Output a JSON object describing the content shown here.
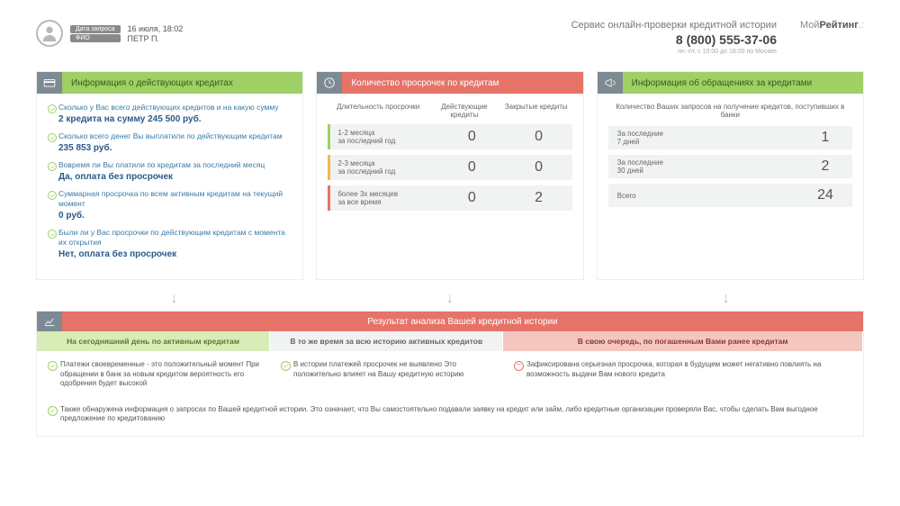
{
  "header": {
    "date_label": "Дата запроса",
    "name_label": "ФИО",
    "date_value": "16 июля, 18:02",
    "name_value": "ПЕТР П.",
    "service": "Сервис онлайн-проверки кредитной истории",
    "phone": "8 (800) 555-37-06",
    "hours": "пн.-пт. с 10:00 до 18:00 по Москве",
    "logo_1": "Мой",
    "logo_2": "Рейтинг"
  },
  "panel1": {
    "title": "Информация о действующих кредитах",
    "items": [
      {
        "q": "Сколько у Вас всего действующих кредитов и на какую сумму",
        "a": "2 кредита на сумму 245 500 руб."
      },
      {
        "q": "Сколько всего денег Вы выплатили по действующим кредитам",
        "a": "235 853 руб."
      },
      {
        "q": "Вовремя ли Вы платили по кредитам за последний месяц",
        "a": "Да, оплата без просрочек"
      },
      {
        "q": "Суммарная просрочка по всем активным кредитам на текущий момент",
        "a": "0 руб."
      },
      {
        "q": "Были ли у Вас просрочки по действующим кредитам с момента их открытия",
        "a": "Нет, оплата без просрочек"
      }
    ]
  },
  "panel2": {
    "title": "Количество просрочек по кредитам",
    "col1": "Длительность просрочки",
    "col2": "Действующие кредиты",
    "col3": "Закрытые кредиты",
    "rows": [
      {
        "label_1": "1-2 месяца",
        "label_2": "за последний год",
        "active": "0",
        "closed": "0",
        "color": "g"
      },
      {
        "label_1": "2-3 месяца",
        "label_2": "за последний год",
        "active": "0",
        "closed": "0",
        "color": "y"
      },
      {
        "label_1": "более 3х месяцев",
        "label_2": "за все время",
        "active": "0",
        "closed": "2",
        "color": "r"
      }
    ]
  },
  "panel3": {
    "title": "Информация об обращениях за кредитами",
    "caption": "Количество Ваших запросов на получение кредитов, поступивших в банки",
    "rows": [
      {
        "label_1": "За последние",
        "label_2": "7 дней",
        "val": "1"
      },
      {
        "label_1": "За последние",
        "label_2": "30 дней",
        "val": "2"
      },
      {
        "label_1": "Всего",
        "label_2": "",
        "val": "24"
      }
    ]
  },
  "result": {
    "title": "Результат анализа Вашей кредитной истории",
    "col1_head": "На сегодняшний день по активным кредитам",
    "col2_head": "В то же время за всю историю активных кредитов",
    "col3_head": "В свою очередь, по погашенным Вами ранее кредитам",
    "col1_text": "Платежи своевременные - это положительный момент При обращении в банк за новым кредитом вероятность его одобрения будет высокой",
    "col2_text": "В истории платежей просрочек не выявлено Это положительно влияет на Вашу кредитную историю",
    "col3_text": "Зафиксирована серьезная просрочка, которая в будущем может негативно повлиять на возможность выдачи Вам нового кредита",
    "footer": "Также обнаружена информация о запросах по Вашей кредитной истории. Это означает, что Вы самостоятельно подавали заявку на кредит или займ, либо кредитные организации проверяли Вас, чтобы сделать Вам выгодное предложение по кредитованию"
  }
}
